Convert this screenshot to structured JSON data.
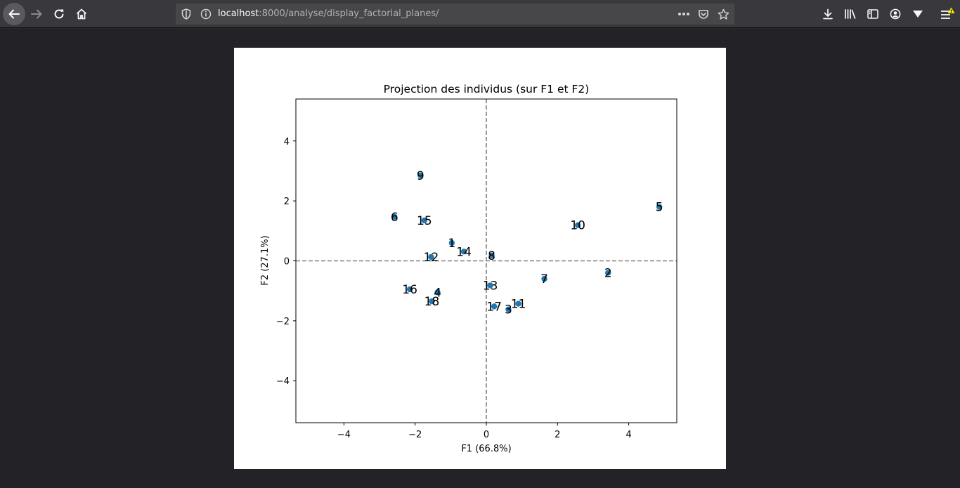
{
  "browser": {
    "url_host": "localhost",
    "url_path": ":8000/analyse/display_factorial_planes/"
  },
  "icons": {
    "back": "arrow-left-icon",
    "forward": "arrow-right-icon",
    "reload": "reload-icon",
    "home": "home-icon",
    "shield": "shield-icon",
    "info": "info-icon",
    "more": "more-dots-icon",
    "pocket": "pocket-icon",
    "bookmark": "star-icon",
    "downloads": "download-icon",
    "library": "library-icon",
    "sidebar": "sidebar-icon",
    "account": "account-icon",
    "extension": "extension-icon",
    "menu": "hamburger-menu-icon"
  },
  "chart_data": {
    "type": "scatter",
    "title": "Projection des individus (sur F1 et F2)",
    "xlabel": "F1 (66.8%)",
    "ylabel": "F2 (27.1%)",
    "xlim": [
      -5.35,
      5.35
    ],
    "ylim": [
      -5.4,
      5.4
    ],
    "xticks": [
      -4,
      -2,
      0,
      2,
      4
    ],
    "yticks": [
      -4,
      -2,
      0,
      2,
      4
    ],
    "xtick_labels": [
      "−4",
      "−2",
      "0",
      "2",
      "4"
    ],
    "ytick_labels": [
      "−4",
      "−2",
      "0",
      "2",
      "4"
    ],
    "reference_lines": {
      "x": 0,
      "y": 0,
      "style": "dashed",
      "color": "#808080"
    },
    "marker_color": "#1f77b4",
    "points": [
      {
        "label": "1",
        "x": -0.97,
        "y": 0.6
      },
      {
        "label": "2",
        "x": 3.42,
        "y": -0.4
      },
      {
        "label": "3",
        "x": 0.62,
        "y": -1.62
      },
      {
        "label": "4",
        "x": -1.37,
        "y": -1.05
      },
      {
        "label": "5",
        "x": 4.86,
        "y": 1.8
      },
      {
        "label": "6",
        "x": -2.58,
        "y": 1.47
      },
      {
        "label": "7",
        "x": 1.63,
        "y": -0.6
      },
      {
        "label": "8",
        "x": 0.15,
        "y": 0.18
      },
      {
        "label": "9",
        "x": -1.85,
        "y": 2.85
      },
      {
        "label": "10",
        "x": 2.57,
        "y": 1.19
      },
      {
        "label": "11",
        "x": 0.9,
        "y": -1.43
      },
      {
        "label": "12",
        "x": -1.55,
        "y": 0.13
      },
      {
        "label": "13",
        "x": 0.11,
        "y": -0.82
      },
      {
        "label": "14",
        "x": -0.63,
        "y": 0.31
      },
      {
        "label": "15",
        "x": -1.74,
        "y": 1.35
      },
      {
        "label": "16",
        "x": -2.15,
        "y": -0.95
      },
      {
        "label": "17",
        "x": 0.22,
        "y": -1.52
      },
      {
        "label": "18",
        "x": -1.53,
        "y": -1.35
      }
    ]
  }
}
